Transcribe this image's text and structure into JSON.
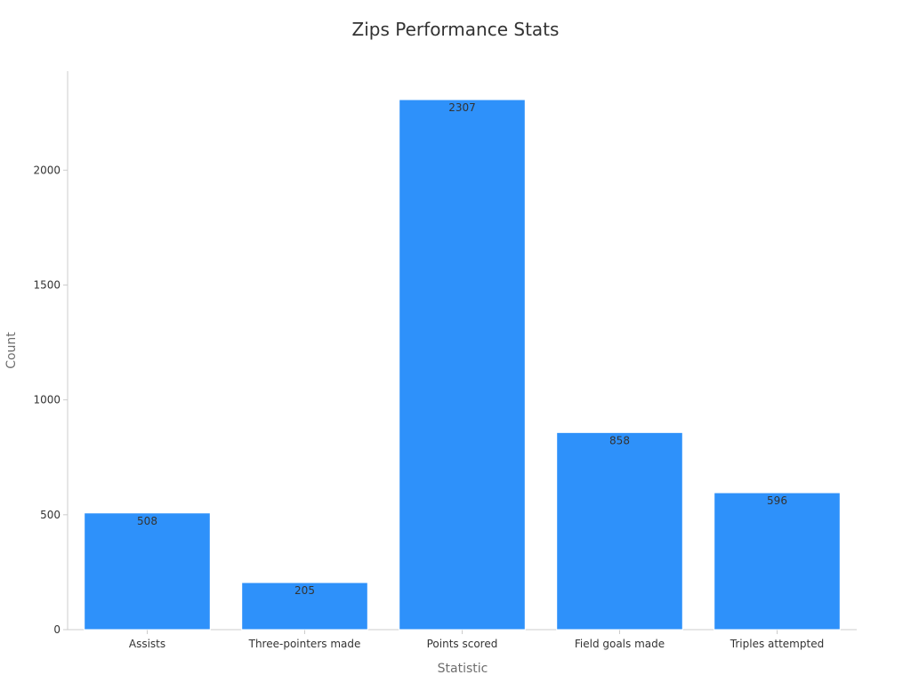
{
  "chart_data": {
    "type": "bar",
    "title": "Zips Performance Stats",
    "xlabel": "Statistic",
    "ylabel": "Count",
    "categories": [
      "Assists",
      "Three-pointers made",
      "Points scored",
      "Field goals made",
      "Triples attempted"
    ],
    "values": [
      508,
      205,
      2307,
      858,
      596
    ],
    "ylim": [
      0,
      2307
    ],
    "yticks": [
      0,
      500,
      1000,
      1500,
      2000
    ],
    "ytick_labels": [
      "0",
      "500",
      "1000",
      "1500",
      "2000"
    ],
    "grid": false,
    "legend": "none",
    "colors": {
      "bar": "#2e91fa",
      "bar_edge": "#ffffff",
      "axis": "#cccccc",
      "text": "#333333",
      "axis_title": "#6e6e6e"
    }
  }
}
